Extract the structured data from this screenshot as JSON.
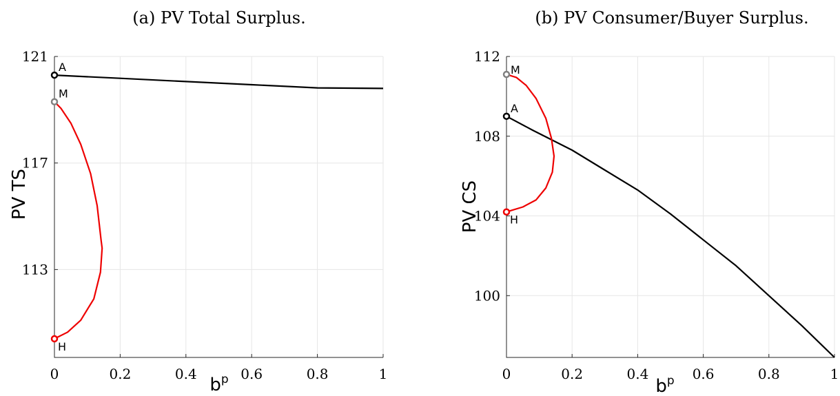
{
  "chart_data": [
    {
      "panel_title": "(a) PV Total Surplus.",
      "type": "line",
      "xlabel": "b",
      "xlabel_sup": "p",
      "ylabel": "PV TS",
      "xlim": [
        0,
        1
      ],
      "ylim": [
        109.7,
        121
      ],
      "xticks": [
        0,
        0.2,
        0.4,
        0.6,
        0.8,
        1
      ],
      "xtick_labels": [
        "0",
        "0.2",
        "0.4",
        "0.6",
        "0.8",
        "1"
      ],
      "yticks": [
        113,
        117,
        121
      ],
      "ytick_labels": [
        "113",
        "117",
        "121"
      ],
      "grid": true,
      "series": [
        {
          "color": "#000000",
          "points": [
            [
              0,
              120.3
            ],
            [
              0.2,
              120.18
            ],
            [
              0.4,
              120.06
            ],
            [
              0.6,
              119.94
            ],
            [
              0.8,
              119.82
            ],
            [
              1,
              119.8
            ]
          ]
        },
        {
          "color": "#ee0000",
          "points": [
            [
              0,
              119.3
            ],
            [
              0.02,
              119.05
            ],
            [
              0.05,
              118.5
            ],
            [
              0.08,
              117.7
            ],
            [
              0.11,
              116.6
            ],
            [
              0.13,
              115.4
            ],
            [
              0.142,
              114.1
            ],
            [
              0.145,
              113.8
            ],
            [
              0.14,
              112.9
            ],
            [
              0.12,
              111.9
            ],
            [
              0.08,
              111.1
            ],
            [
              0.04,
              110.65
            ],
            [
              0,
              110.4
            ]
          ]
        }
      ],
      "points": [
        {
          "label": "A",
          "x": 0,
          "y": 120.3,
          "color": "#000000",
          "label_pos": "above"
        },
        {
          "label": "M",
          "x": 0,
          "y": 119.3,
          "color": "#808080",
          "label_pos": "above"
        },
        {
          "label": "H",
          "x": 0,
          "y": 110.4,
          "color": "#ee0000",
          "label_pos": "below"
        }
      ]
    },
    {
      "panel_title": "(b) PV Consumer/Buyer Surplus.",
      "type": "line",
      "xlabel": "b",
      "xlabel_sup": "p",
      "ylabel": "PV CS",
      "xlim": [
        0,
        1
      ],
      "ylim": [
        96.9,
        112
      ],
      "xticks": [
        0,
        0.2,
        0.4,
        0.6,
        0.8,
        1
      ],
      "xtick_labels": [
        "0",
        "0.2",
        "0.4",
        "0.6",
        "0.8",
        "1"
      ],
      "yticks": [
        100,
        104,
        108,
        112
      ],
      "ytick_labels": [
        "100",
        "104",
        "108",
        "112"
      ],
      "grid": true,
      "series": [
        {
          "color": "#000000",
          "points": [
            [
              0,
              109.0
            ],
            [
              0.08,
              108.3
            ],
            [
              0.2,
              107.3
            ],
            [
              0.3,
              106.3
            ],
            [
              0.4,
              105.3
            ],
            [
              0.5,
              104.1
            ],
            [
              0.6,
              102.8
            ],
            [
              0.7,
              101.5
            ],
            [
              0.8,
              100.0
            ],
            [
              0.9,
              98.5
            ],
            [
              1,
              96.9
            ]
          ]
        },
        {
          "color": "#ee0000",
          "points": [
            [
              0,
              111.1
            ],
            [
              0.03,
              110.95
            ],
            [
              0.06,
              110.55
            ],
            [
              0.09,
              109.9
            ],
            [
              0.12,
              108.9
            ],
            [
              0.137,
              107.9
            ],
            [
              0.145,
              107.0
            ],
            [
              0.14,
              106.2
            ],
            [
              0.12,
              105.4
            ],
            [
              0.09,
              104.8
            ],
            [
              0.05,
              104.45
            ],
            [
              0.02,
              104.3
            ],
            [
              0,
              104.2
            ]
          ]
        }
      ],
      "points": [
        {
          "label": "M",
          "x": 0,
          "y": 111.1,
          "color": "#808080",
          "label_pos": "right"
        },
        {
          "label": "A",
          "x": 0,
          "y": 109.0,
          "color": "#000000",
          "label_pos": "above"
        },
        {
          "label": "H",
          "x": 0,
          "y": 104.2,
          "color": "#ee0000",
          "label_pos": "below"
        }
      ]
    }
  ]
}
